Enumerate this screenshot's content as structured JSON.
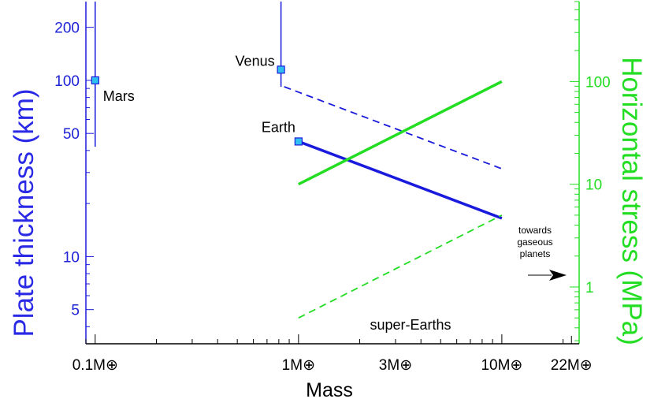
{
  "chart_data": {
    "type": "line",
    "xlabel": "Mass",
    "ylabel_left": "Plate thickness (km)",
    "ylabel_right": "Horizontal stress (MPa)",
    "x_scale": "log",
    "y_left_scale": "log",
    "y_right_scale": "log",
    "xlim": [
      0.09,
      24
    ],
    "ylim_left": [
      3.2,
      280
    ],
    "ylim_right": [
      0.28,
      600
    ],
    "x_ticks": [
      {
        "value": 0.1,
        "label": "0.1M⊕"
      },
      {
        "value": 1,
        "label": "1M⊕"
      },
      {
        "value": 3,
        "label": "3M⊕"
      },
      {
        "value": 10,
        "label": "10M⊕"
      },
      {
        "value": 22,
        "label": "22M⊕"
      }
    ],
    "y_left_ticks": [
      {
        "value": 200,
        "label": "200"
      },
      {
        "value": 100,
        "label": "100"
      },
      {
        "value": 50,
        "label": "50"
      },
      {
        "value": 10,
        "label": "10"
      },
      {
        "value": 5,
        "label": "5"
      }
    ],
    "y_right_ticks": [
      {
        "value": 100,
        "label": "100"
      },
      {
        "value": 10,
        "label": "10"
      },
      {
        "value": 1,
        "label": "1"
      }
    ],
    "planets": [
      {
        "name": "Mars",
        "mass": 0.1,
        "thickness": 100,
        "err_low": 42,
        "err_high": 280
      },
      {
        "name": "Venus",
        "mass": 0.82,
        "thickness": 115,
        "err_low": 92,
        "err_high": 280
      },
      {
        "name": "Earth",
        "mass": 1.0,
        "thickness": 45
      }
    ],
    "series": [
      {
        "axis": "left",
        "style": "solid",
        "color": "#1a1add",
        "x": [
          1,
          10
        ],
        "y": [
          45,
          16.5
        ]
      },
      {
        "axis": "left",
        "style": "dashed",
        "color": "#1a1add",
        "x": [
          0.85,
          10
        ],
        "y": [
          92,
          31.5
        ]
      },
      {
        "axis": "right",
        "style": "solid",
        "color": "#22dd22",
        "x": [
          1,
          10
        ],
        "y": [
          10,
          100
        ]
      },
      {
        "axis": "right",
        "style": "dashed",
        "color": "#22dd22",
        "x": [
          1,
          10
        ],
        "y": [
          0.5,
          5
        ]
      }
    ],
    "annotations": {
      "super_earths": "super-Earths",
      "towards_lines": [
        "towards",
        "gaseous",
        "planets"
      ]
    },
    "colors": {
      "blue": "#1a1add",
      "green": "#22dd22",
      "marker_fill": "#2fc0f0"
    }
  }
}
